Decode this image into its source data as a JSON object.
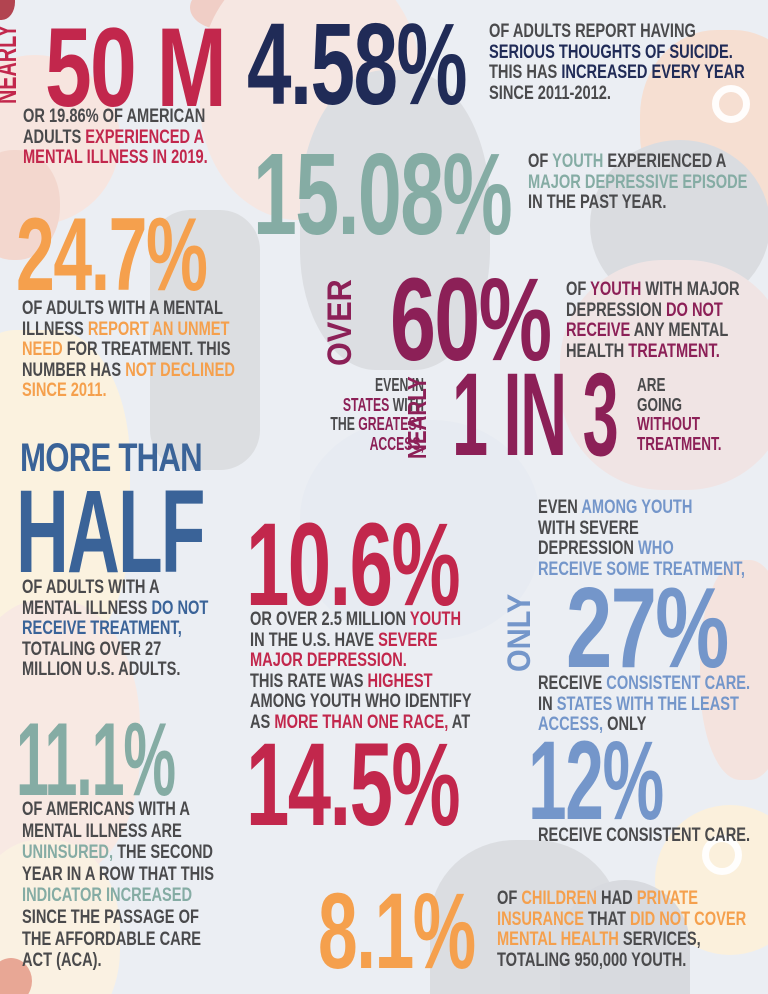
{
  "colors": {
    "crimson": "#C2274C",
    "navy": "#202B57",
    "sage": "#85ACA4",
    "orange": "#F5A04D",
    "plum": "#8C2057",
    "blue": "#3A6398",
    "lightblue": "#7496CA",
    "dark": "#4A4A4C"
  },
  "sections": {
    "adults_mi": {
      "vertical": "NEARLY",
      "number": "50 M",
      "rich": [
        {
          "t": "OR 19.86% OF AMERICAN\nADULTS ",
          "c": "dark"
        },
        {
          "t": "EXPERIENCED A\nMENTAL ILLNESS IN 2019.",
          "c": "crimson"
        }
      ]
    },
    "suicide": {
      "number": "4.58%",
      "rich": [
        {
          "t": "OF ADULTS REPORT HAVING\n",
          "c": "dark"
        },
        {
          "t": "SERIOUS THOUGHTS OF SUICIDE.\n",
          "c": "navy"
        },
        {
          "t": "THIS HAS ",
          "c": "dark"
        },
        {
          "t": "INCREASED EVERY YEAR\n",
          "c": "navy"
        },
        {
          "t": "SINCE 2011-2012.",
          "c": "dark"
        }
      ]
    },
    "youth_mde": {
      "number": "15.08%",
      "rich": [
        {
          "t": "OF ",
          "c": "dark"
        },
        {
          "t": "YOUTH ",
          "c": "sage"
        },
        {
          "t": "EXPERIENCED A\n",
          "c": "dark"
        },
        {
          "t": "MAJOR DEPRESSIVE EPISODE\n",
          "c": "sage"
        },
        {
          "t": "IN THE PAST YEAR.",
          "c": "dark"
        }
      ]
    },
    "unmet_need": {
      "number": "24.7%",
      "rich": [
        {
          "t": "OF ADULTS WITH A MENTAL\nILLNESS ",
          "c": "dark"
        },
        {
          "t": "REPORT AN UNMET\nNEED ",
          "c": "orange"
        },
        {
          "t": "FOR TREATMENT. THIS\nNUMBER HAS ",
          "c": "dark"
        },
        {
          "t": "NOT DECLINED\nSINCE 2011.",
          "c": "orange"
        }
      ]
    },
    "youth_no_treatment": {
      "vertical": "OVER",
      "number": "60%",
      "rich": [
        {
          "t": "OF ",
          "c": "dark"
        },
        {
          "t": "YOUTH ",
          "c": "plum"
        },
        {
          "t": "WITH MAJOR\nDEPRESSION ",
          "c": "dark"
        },
        {
          "t": "DO NOT\nRECEIVE ",
          "c": "plum"
        },
        {
          "t": "ANY MENTAL\nHEALTH ",
          "c": "dark"
        },
        {
          "t": "TREATMENT.",
          "c": "plum"
        }
      ]
    },
    "one_in_three": {
      "vertical": "NEARLY",
      "number": "1 IN 3",
      "left_rich": [
        {
          "t": "EVEN IN\n",
          "c": "dark"
        },
        {
          "t": "STATES ",
          "c": "plum"
        },
        {
          "t": "WITH\nTHE ",
          "c": "dark"
        },
        {
          "t": "GREATEST\nACCESS,",
          "c": "plum"
        }
      ],
      "right_rich": [
        {
          "t": "ARE\nGOING\n",
          "c": "dark"
        },
        {
          "t": "WITHOUT\nTREATMENT.",
          "c": "plum"
        }
      ]
    },
    "half": {
      "line1": "MORE THAN",
      "line2": "HALF",
      "rich": [
        {
          "t": "OF ADULTS WITH A\nMENTAL ILLNESS ",
          "c": "dark"
        },
        {
          "t": "DO NOT\nRECEIVE TREATMENT,",
          "c": "blue"
        },
        {
          "t": "\nTOTALING OVER 27\nMILLION U.S. ADULTS.",
          "c": "dark"
        }
      ]
    },
    "severe_depression": {
      "number": "10.6%",
      "number2": "14.5%",
      "rich": [
        {
          "t": "OR OVER 2.5 MILLION ",
          "c": "dark"
        },
        {
          "t": "YOUTH\n",
          "c": "crimson"
        },
        {
          "t": "IN THE U.S. HAVE ",
          "c": "dark"
        },
        {
          "t": "SEVERE\nMAJOR DEPRESSION.\n",
          "c": "crimson"
        },
        {
          "t": "THIS RATE WAS ",
          "c": "dark"
        },
        {
          "t": "HIGHEST\n",
          "c": "crimson"
        },
        {
          "t": "AMONG YOUTH WHO IDENTIFY\nAS ",
          "c": "dark"
        },
        {
          "t": "MORE THAN ONE RACE, ",
          "c": "crimson"
        },
        {
          "t": "AT",
          "c": "dark"
        }
      ]
    },
    "consistent_care": {
      "vertical": "ONLY",
      "number": "27%",
      "number2": "12%",
      "top_rich": [
        {
          "t": "EVEN ",
          "c": "dark"
        },
        {
          "t": "AMONG YOUTH\n",
          "c": "lightblue"
        },
        {
          "t": "WITH SEVERE\nDEPRESSION ",
          "c": "dark"
        },
        {
          "t": "WHO\nRECEIVE SOME TREATMENT,",
          "c": "lightblue"
        }
      ],
      "mid_rich": [
        {
          "t": "RECEIVE ",
          "c": "dark"
        },
        {
          "t": "CONSISTENT CARE.\n",
          "c": "lightblue"
        },
        {
          "t": "IN ",
          "c": "dark"
        },
        {
          "t": "STATES WITH THE LEAST\nACCESS, ",
          "c": "lightblue"
        },
        {
          "t": "ONLY",
          "c": "dark"
        }
      ],
      "bottom_rich": [
        {
          "t": "RECEIVE CONSISTENT CARE.",
          "c": "dark"
        }
      ]
    },
    "uninsured": {
      "number": "11.1%",
      "rich": [
        {
          "t": "OF AMERICANS WITH A\nMENTAL ILLNESS ARE\n",
          "c": "dark"
        },
        {
          "t": "UNINSURED, ",
          "c": "sage"
        },
        {
          "t": "THE SECOND\nYEAR IN A ROW THAT THIS\n",
          "c": "dark"
        },
        {
          "t": "INDICATOR INCREASED\n",
          "c": "sage"
        },
        {
          "t": "SINCE THE PASSAGE OF\nTHE AFFORDABLE CARE\nACT (ACA).",
          "c": "dark"
        }
      ]
    },
    "private_insurance": {
      "number": "8.1%",
      "rich": [
        {
          "t": "OF ",
          "c": "dark"
        },
        {
          "t": "CHILDREN ",
          "c": "orange"
        },
        {
          "t": "HAD ",
          "c": "dark"
        },
        {
          "t": "PRIVATE\nINSURANCE ",
          "c": "orange"
        },
        {
          "t": "THAT ",
          "c": "dark"
        },
        {
          "t": "DID NOT COVER\nMENTAL HEALTH ",
          "c": "orange"
        },
        {
          "t": "SERVICES,\nTOTALING 950,000 YOUTH.",
          "c": "dark"
        }
      ]
    }
  }
}
